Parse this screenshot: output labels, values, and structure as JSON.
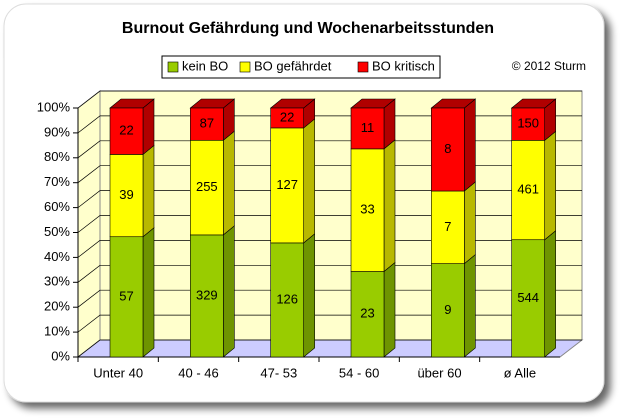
{
  "chart_data": {
    "type": "bar3d_stacked",
    "stacking": "percent",
    "title": "Burnout Gefährdung und Wochenarbeitsstunden",
    "annotation": "© 2012 Sturm",
    "categories": [
      "Unter 40",
      "40 - 46",
      "47- 53",
      "54 - 60",
      "über 60",
      "ø Alle"
    ],
    "series": [
      {
        "name": "kein BO",
        "color": "#99cc00",
        "side": "#6e9400",
        "values": [
          57,
          329,
          126,
          23,
          9,
          544
        ]
      },
      {
        "name": "BO gefährdet",
        "color": "#ffff00",
        "side": "#b8b800",
        "values": [
          39,
          255,
          127,
          33,
          7,
          461
        ]
      },
      {
        "name": "BO kritisch",
        "color": "#ff0000",
        "side": "#b00000",
        "values": [
          22,
          87,
          22,
          11,
          8,
          150
        ]
      }
    ],
    "ylim": [
      0,
      100
    ],
    "yticks": [
      {
        "value": 0,
        "label": "0%"
      },
      {
        "value": 10,
        "label": "10%"
      },
      {
        "value": 20,
        "label": "20%"
      },
      {
        "value": 30,
        "label": "30%"
      },
      {
        "value": 40,
        "label": "40%"
      },
      {
        "value": 50,
        "label": "50%"
      },
      {
        "value": 60,
        "label": "60%"
      },
      {
        "value": 70,
        "label": "70%"
      },
      {
        "value": 80,
        "label": "80%"
      },
      {
        "value": 90,
        "label": "90%"
      },
      {
        "value": 100,
        "label": "100%"
      }
    ],
    "grid": true,
    "legend": "top"
  }
}
